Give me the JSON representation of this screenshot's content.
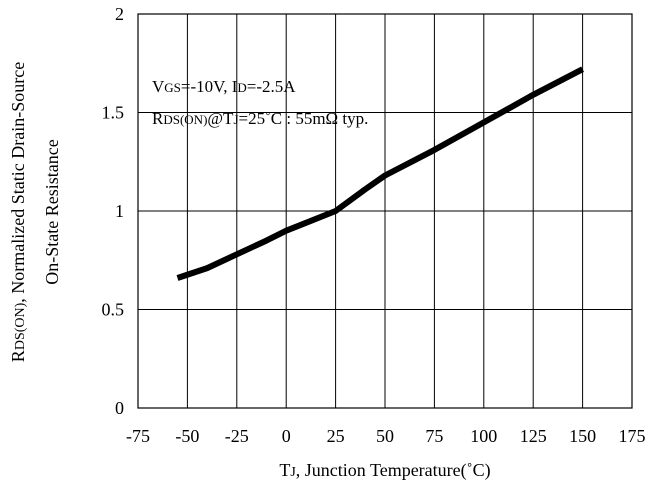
{
  "chart_data": {
    "type": "line",
    "x": [
      -55,
      -40,
      -25,
      -10,
      0,
      10,
      25,
      40,
      50,
      75,
      100,
      125,
      150
    ],
    "y": [
      0.66,
      0.71,
      0.78,
      0.85,
      0.9,
      0.94,
      1.0,
      1.11,
      1.18,
      1.31,
      1.45,
      1.59,
      1.72
    ],
    "xlim": [
      -75,
      175
    ],
    "ylim": [
      0,
      2
    ],
    "x_ticks": [
      "-75",
      "-50",
      "-25",
      "0",
      "25",
      "50",
      "75",
      "100",
      "125",
      "150",
      "175"
    ],
    "y_ticks": [
      "0",
      "0.5",
      "1",
      "1.5",
      "2"
    ],
    "grid": true,
    "line_color": "#000000",
    "xlabel_parts": [
      {
        "text": "T",
        "size": "large"
      },
      {
        "text": "J",
        "size": "small"
      },
      {
        "text": ", Junction Temperature(˚C)",
        "size": "large"
      }
    ],
    "ylabel_line1_parts": [
      {
        "text": "R",
        "size": "large"
      },
      {
        "text": "DS(ON)",
        "size": "small"
      },
      {
        "text": ", Normalized Static Drain-Source",
        "size": "large"
      }
    ],
    "ylabel_line2": "On-State Resistance",
    "annotation_line1_parts": [
      {
        "text": "V",
        "size": "large"
      },
      {
        "text": "GS",
        "size": "small"
      },
      {
        "text": "=-10V, I",
        "size": "large"
      },
      {
        "text": "D",
        "size": "small"
      },
      {
        "text": "=-2.5A",
        "size": "large"
      }
    ],
    "annotation_line2_parts": [
      {
        "text": "R",
        "size": "large"
      },
      {
        "text": "DS(ON)",
        "size": "small"
      },
      {
        "text": "@T",
        "size": "large"
      },
      {
        "text": "J",
        "size": "small"
      },
      {
        "text": "=25˚C : 55mΩ  typ.",
        "size": "large"
      }
    ]
  }
}
